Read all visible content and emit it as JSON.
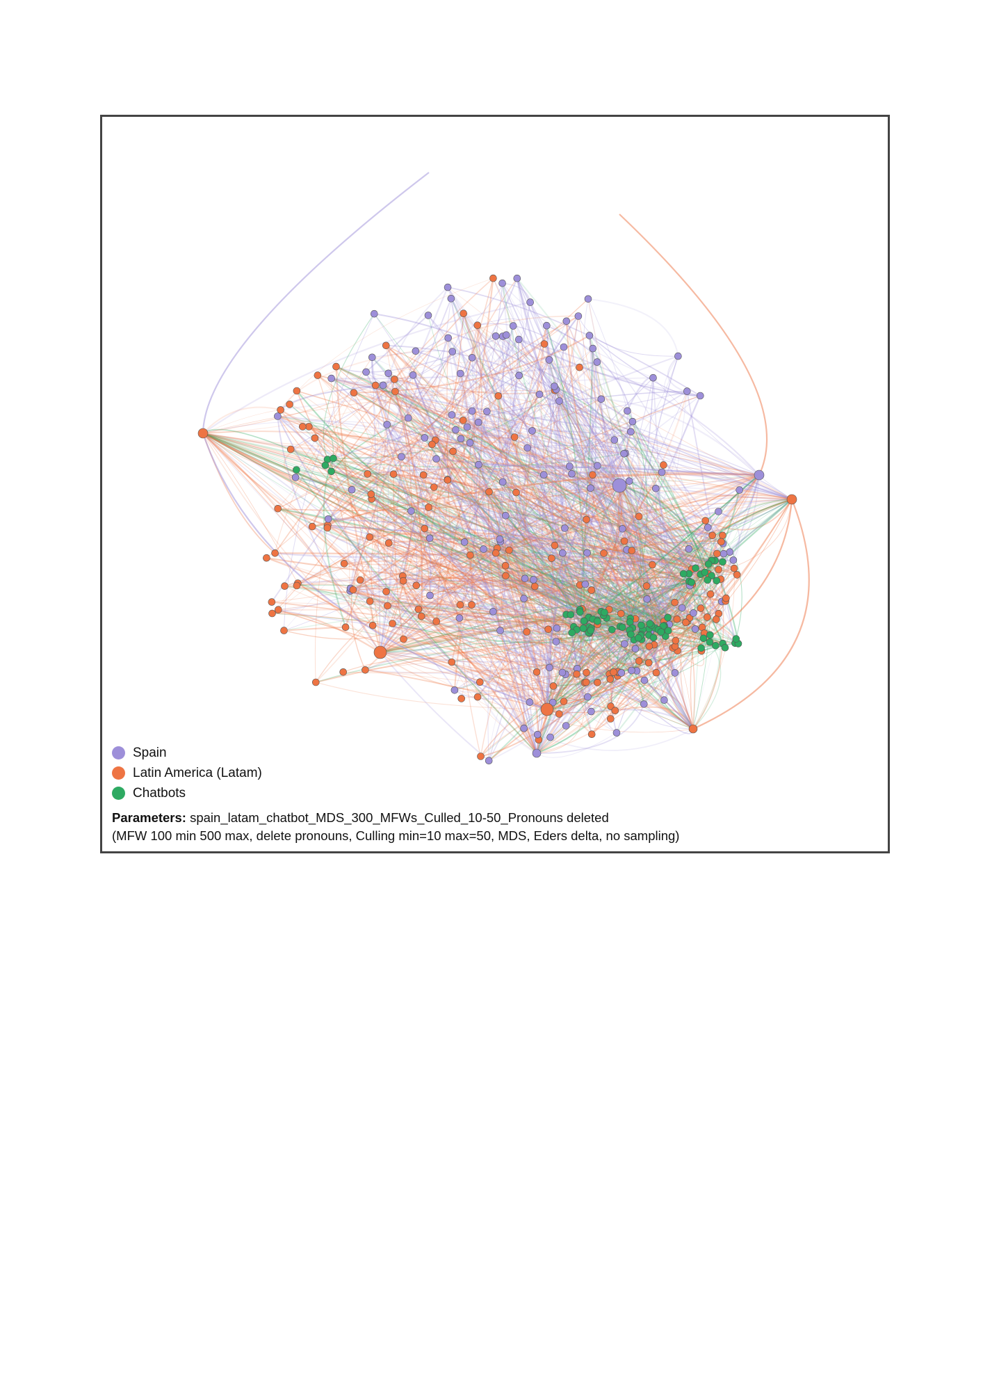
{
  "legend": {
    "items": [
      {
        "label": "Spain",
        "color": "#9d8fd9"
      },
      {
        "label": "Latin America (Latam)",
        "color": "#ee7443"
      },
      {
        "label": "Chatbots",
        "color": "#2eaa62"
      }
    ]
  },
  "caption": {
    "label": "Parameters:",
    "title": "spain_latam_chatbot_MDS_300_MFWs_Culled_10-50_Pronouns deleted",
    "details": "(MFW 100 min 500 max, delete pronouns, Culling min=10 max=50, MDS, Eders delta, no sampling)"
  },
  "network": {
    "colors": {
      "spain": "#9d8fd9",
      "latam": "#ee7443",
      "chatbots": "#2eaa62",
      "node_stroke": "#555555"
    }
  }
}
